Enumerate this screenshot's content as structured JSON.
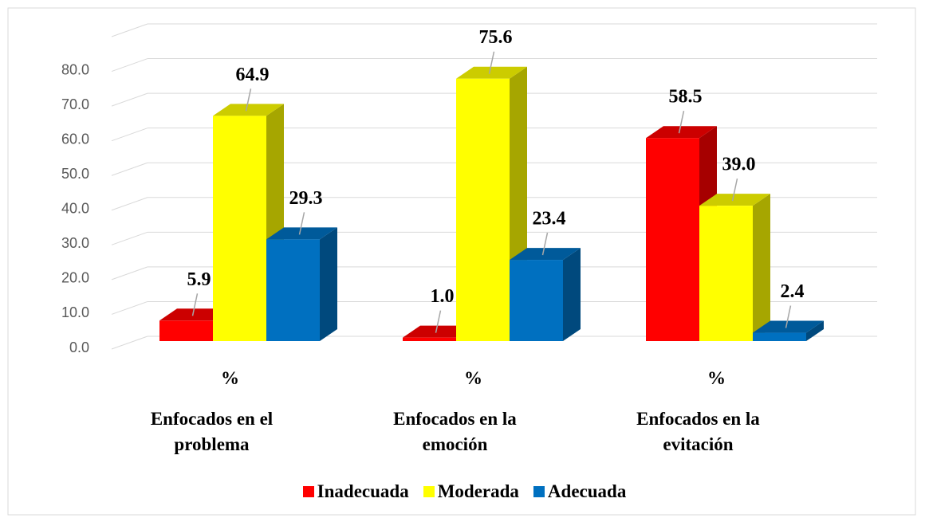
{
  "chart_data": {
    "type": "bar3d",
    "categories": [
      "Enfocados en el problema",
      "Enfocados en la emoción",
      "Enfocados en la evitación"
    ],
    "category_sublabels": [
      "%",
      "%",
      "%"
    ],
    "series": [
      {
        "name": "Inadecuada",
        "color": "#ff0000",
        "values": [
          5.9,
          1.0,
          58.5
        ],
        "value_labels": [
          "5.9",
          "1.0",
          "58.5"
        ]
      },
      {
        "name": "Moderada",
        "color": "#ffff00",
        "values": [
          64.9,
          75.6,
          39.0
        ],
        "value_labels": [
          "64.9",
          "75.6",
          "39.0"
        ]
      },
      {
        "name": "Adecuada",
        "color": "#0070c0",
        "values": [
          29.3,
          23.4,
          2.4
        ],
        "value_labels": [
          "29.3",
          "23.4",
          "2.4"
        ]
      }
    ],
    "ylim": [
      0,
      90
    ],
    "yticks": [
      {
        "value": 0,
        "label": "0.0"
      },
      {
        "value": 10,
        "label": "10.0"
      },
      {
        "value": 20,
        "label": "20.0"
      },
      {
        "value": 30,
        "label": "30.0"
      },
      {
        "value": 40,
        "label": "40.0"
      },
      {
        "value": 50,
        "label": "50.0"
      },
      {
        "value": 60,
        "label": "60.0"
      },
      {
        "value": 70,
        "label": "70.0"
      },
      {
        "value": 80,
        "label": "80.0"
      }
    ],
    "grid": true,
    "legend": "bottom"
  }
}
